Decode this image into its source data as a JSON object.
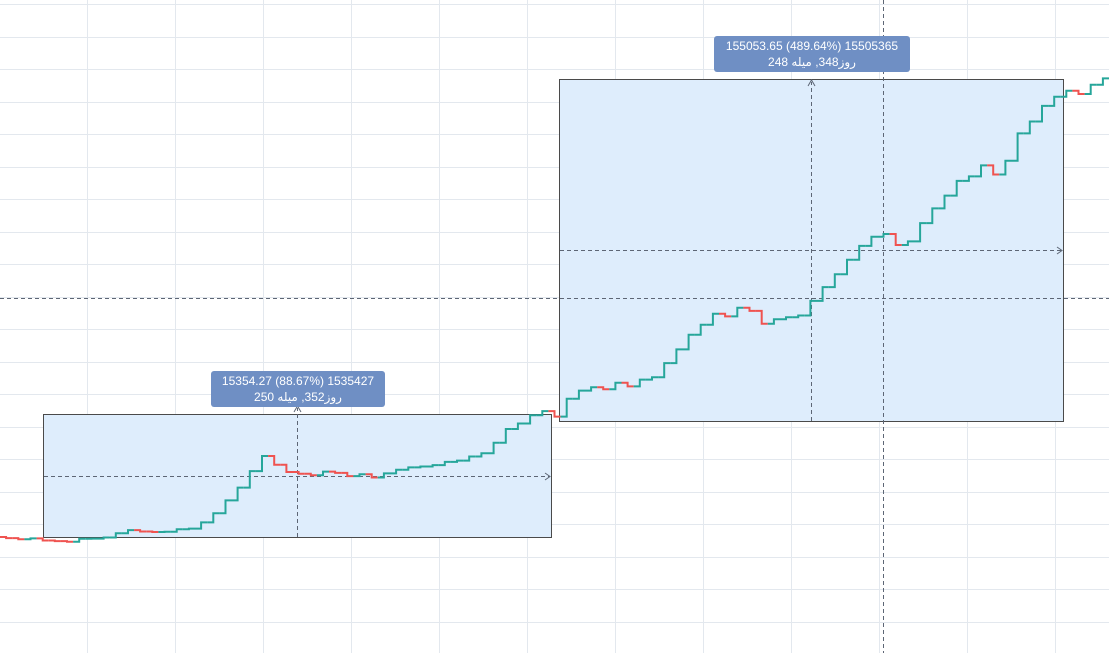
{
  "chart": {
    "background": "#ffffff",
    "grid_color": "#e3e8ee",
    "up_color": "#26a69a",
    "down_color": "#ef5350",
    "range_fill": "#deedfc",
    "range_border": "#4a4a4a",
    "crosshair_color": "#5d6675"
  },
  "measures": [
    {
      "id": "left",
      "line1": "15354.27 (88.67%) 1535427",
      "line2": "250 روز352, میله",
      "label_color": "#6f8fc4"
    },
    {
      "id": "right",
      "line1": "155053.65 (489.64%) 15505365",
      "line2": "248 روز348, میله",
      "label_color": "#6f8fc4"
    }
  ],
  "chart_data": {
    "type": "line",
    "title": "",
    "xlabel": "",
    "ylabel": "",
    "grid": true,
    "series": [
      {
        "values": [
          0.0,
          -1.2,
          -2.5,
          -1.5,
          -3.8,
          -4.5,
          -5.2,
          -2.0,
          -1.8,
          -0.5,
          4.0,
          7.5,
          6.0,
          5.5,
          5.8,
          8.5,
          9.2,
          16.0,
          26.0,
          40.0,
          54.0,
          72.0,
          88.5,
          79.0,
          71.0,
          69.0,
          67.5,
          71.5,
          70.0,
          66.5,
          68.5,
          65.0,
          69.5,
          73.5,
          76.0,
          77.0,
          78.5,
          82.0,
          83.5,
          88.0,
          91.5,
          103.0,
          118.0,
          124.0,
          133.0,
          137.5,
          131.5,
          151.0,
          160.0,
          163.5,
          161.5,
          168.5,
          164.5,
          172.0,
          174.5,
          190.0,
          205.0,
          221.0,
          232.0,
          244.0,
          241.0,
          250.5,
          247.0,
          233.0,
          238.0,
          240.0,
          242.0,
          258.0,
          273.0,
          287.0,
          303.0,
          318.0,
          328.0,
          331.0,
          319.0,
          323.0,
          343.0,
          359.0,
          373.0,
          389.0,
          394.0,
          406.0,
          396.0,
          411.0,
          441.0,
          454.0,
          471.0,
          481.0,
          487.5,
          484.0,
          494.0,
          501.0
        ]
      }
    ]
  }
}
